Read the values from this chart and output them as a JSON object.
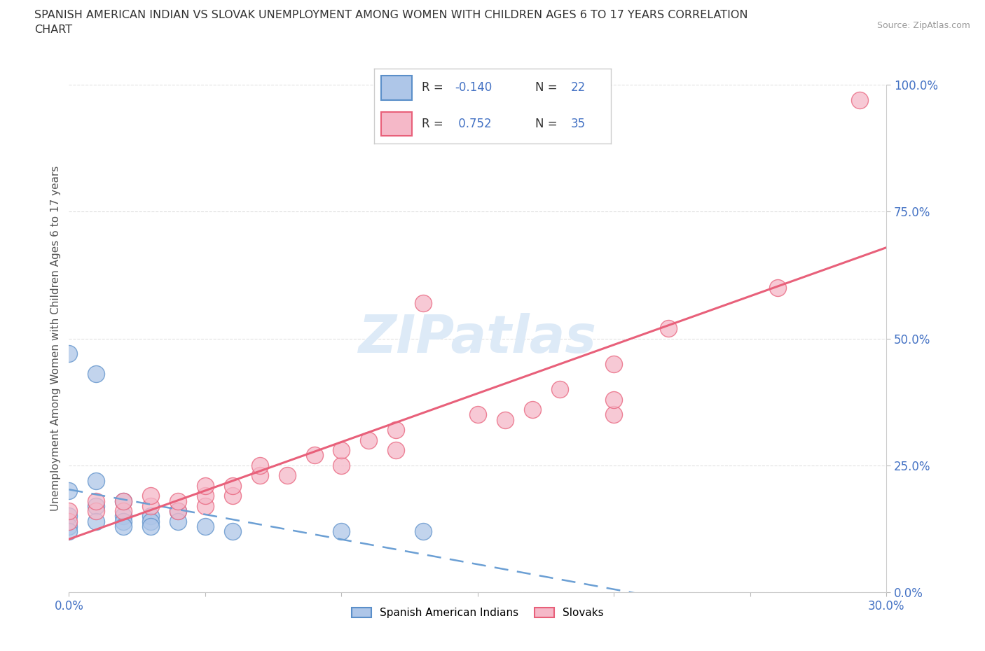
{
  "title_line1": "SPANISH AMERICAN INDIAN VS SLOVAK UNEMPLOYMENT AMONG WOMEN WITH CHILDREN AGES 6 TO 17 YEARS CORRELATION",
  "title_line2": "CHART",
  "source": "Source: ZipAtlas.com",
  "ylabel": "Unemployment Among Women with Children Ages 6 to 17 years",
  "xlim": [
    0,
    0.3
  ],
  "ylim": [
    0,
    1.0
  ],
  "xticks": [
    0.0,
    0.05,
    0.1,
    0.15,
    0.2,
    0.25,
    0.3
  ],
  "yticks": [
    0.0,
    0.25,
    0.5,
    0.75,
    1.0
  ],
  "yticklabels": [
    "0.0%",
    "25.0%",
    "50.0%",
    "75.0%",
    "100.0%"
  ],
  "blue_R": -0.14,
  "blue_N": 22,
  "pink_R": 0.752,
  "pink_N": 35,
  "legend_labels": [
    "Spanish American Indians",
    "Slovaks"
  ],
  "blue_color": "#aec6e8",
  "pink_color": "#f5b8c8",
  "blue_edge_color": "#5b8fc9",
  "pink_edge_color": "#e8607a",
  "blue_line_color": "#6b9fd4",
  "pink_line_color": "#e8607a",
  "background_color": "#ffffff",
  "grid_color": "#e0e0e0",
  "blue_x": [
    0.0,
    0.0,
    0.0,
    0.0,
    0.0,
    0.01,
    0.01,
    0.01,
    0.01,
    0.02,
    0.02,
    0.02,
    0.02,
    0.03,
    0.03,
    0.03,
    0.04,
    0.04,
    0.05,
    0.06,
    0.1,
    0.13
  ],
  "blue_y": [
    0.47,
    0.2,
    0.15,
    0.13,
    0.12,
    0.43,
    0.22,
    0.17,
    0.14,
    0.18,
    0.15,
    0.14,
    0.13,
    0.15,
    0.14,
    0.13,
    0.16,
    0.14,
    0.13,
    0.12,
    0.12,
    0.12
  ],
  "pink_x": [
    0.0,
    0.0,
    0.01,
    0.01,
    0.02,
    0.02,
    0.03,
    0.03,
    0.04,
    0.04,
    0.05,
    0.05,
    0.05,
    0.06,
    0.06,
    0.07,
    0.07,
    0.08,
    0.09,
    0.1,
    0.1,
    0.11,
    0.12,
    0.12,
    0.13,
    0.15,
    0.16,
    0.17,
    0.18,
    0.2,
    0.2,
    0.2,
    0.22,
    0.26,
    0.29
  ],
  "pink_y": [
    0.14,
    0.16,
    0.16,
    0.18,
    0.16,
    0.18,
    0.17,
    0.19,
    0.16,
    0.18,
    0.17,
    0.19,
    0.21,
    0.19,
    0.21,
    0.23,
    0.25,
    0.23,
    0.27,
    0.25,
    0.28,
    0.3,
    0.28,
    0.32,
    0.57,
    0.35,
    0.34,
    0.36,
    0.4,
    0.35,
    0.38,
    0.45,
    0.52,
    0.6,
    0.97
  ]
}
